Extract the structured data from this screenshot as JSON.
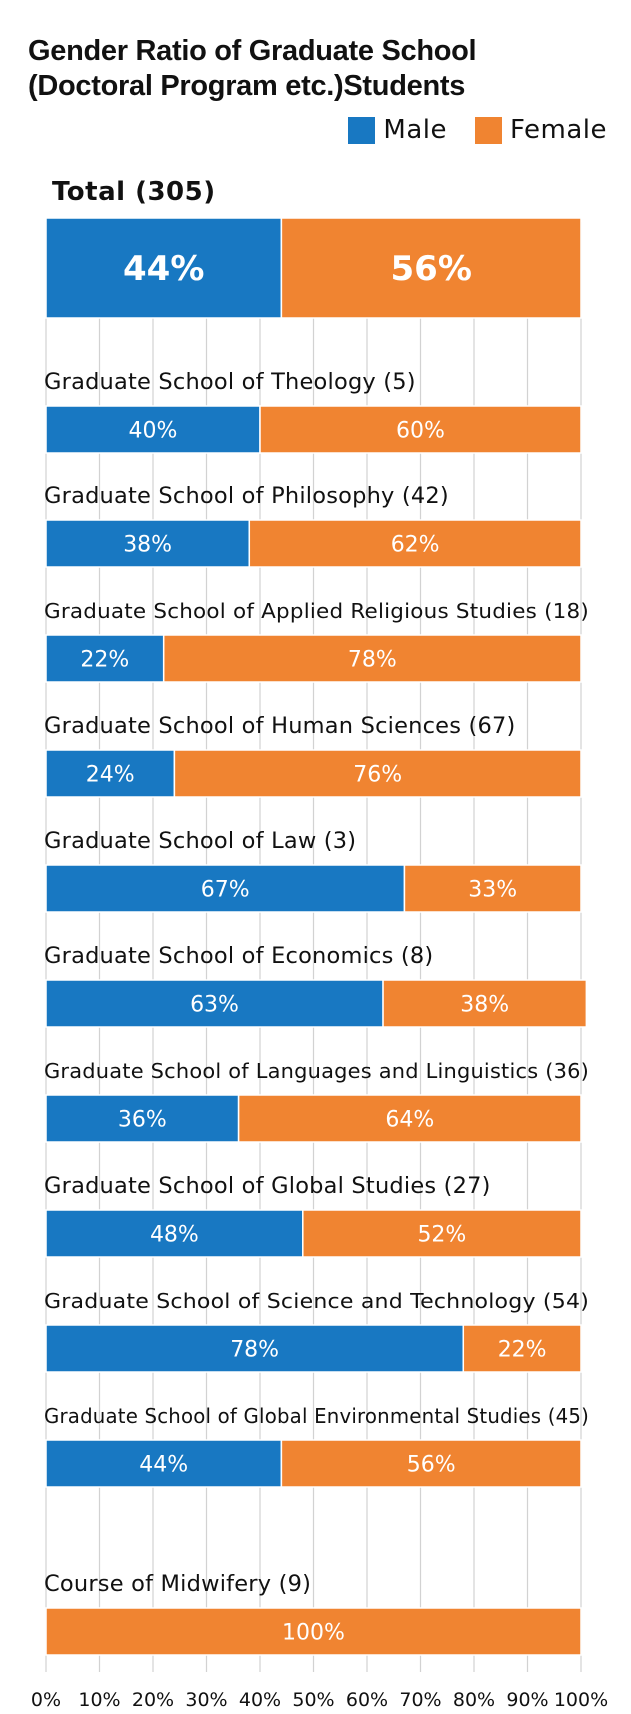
{
  "colors": {
    "male": "#1878c2",
    "female": "#f08431",
    "grid": "#d2d2d2"
  },
  "chart_data": {
    "type": "bar",
    "orientation": "horizontal",
    "stacked": true,
    "title_lines": [
      "Gender Ratio of Graduate School",
      "(Doctoral Program etc.)Students"
    ],
    "legend": {
      "position": "top-right",
      "entries": [
        "Male",
        "Female"
      ]
    },
    "xlim": [
      0,
      100
    ],
    "x_ticks": [
      "0%",
      "10%",
      "20%",
      "30%",
      "40%",
      "50%",
      "60%",
      "70%",
      "80%",
      "90%",
      "100%"
    ],
    "grid": true,
    "categories": [
      "Total (305)",
      "Graduate School of Theology (5)",
      "Graduate School of Philosophy (42)",
      "Graduate School of Applied Religious Studies (18)",
      "Graduate School of Human Sciences (67)",
      "Graduate School of Law (3)",
      "Graduate School of Economics (8)",
      "Graduate School of Languages and Linguistics (36)",
      "Graduate School of Global Studies (27)",
      "Graduate School of Science and Technology (54)",
      "Graduate School of Global Environmental Studies (45)",
      "Course of Midwifery (9)"
    ],
    "series": [
      {
        "name": "Male",
        "values": [
          44,
          40,
          38,
          22,
          24,
          67,
          63,
          36,
          48,
          78,
          44,
          0
        ],
        "labels": [
          "44%",
          "40%",
          "38%",
          "22%",
          "24%",
          "67%",
          "63%",
          "36%",
          "48%",
          "78%",
          "44%",
          ""
        ]
      },
      {
        "name": "Female",
        "values": [
          56,
          60,
          62,
          78,
          76,
          33,
          38,
          64,
          52,
          22,
          56,
          100
        ],
        "labels": [
          "56%",
          "60%",
          "62%",
          "78%",
          "76%",
          "33%",
          "38%",
          "64%",
          "52%",
          "22%",
          "56%",
          "100%"
        ]
      }
    ]
  }
}
